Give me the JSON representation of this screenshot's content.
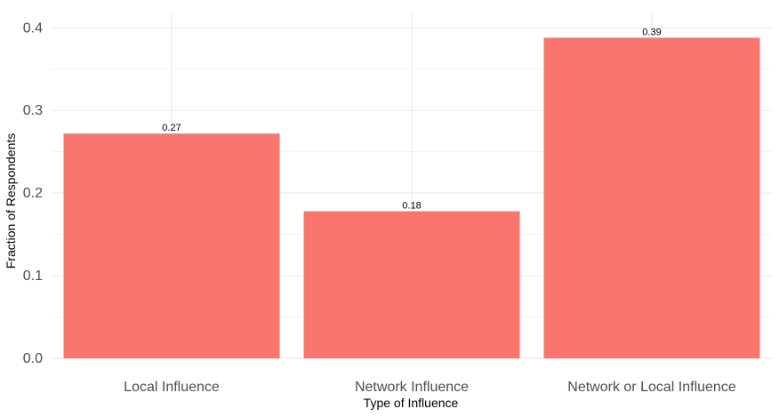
{
  "chart_data": {
    "type": "bar",
    "categories": [
      "Local Influence",
      "Network Influence",
      "Network or Local Influence"
    ],
    "values": [
      0.272,
      0.178,
      0.388
    ],
    "value_labels": [
      "0.27",
      "0.18",
      "0.39"
    ],
    "xlabel": "Type of Influence",
    "ylabel": "Fraction of Respondents",
    "ylim": [
      0,
      0.4
    ],
    "yticks": [
      0.0,
      0.1,
      0.2,
      0.3,
      0.4
    ],
    "ytick_labels": [
      "0.0",
      "0.1",
      "0.2",
      "0.3",
      "0.4"
    ],
    "bar_color": "#F8766D",
    "grid": true,
    "grid_color": "#ebebeb",
    "legend": "none"
  }
}
